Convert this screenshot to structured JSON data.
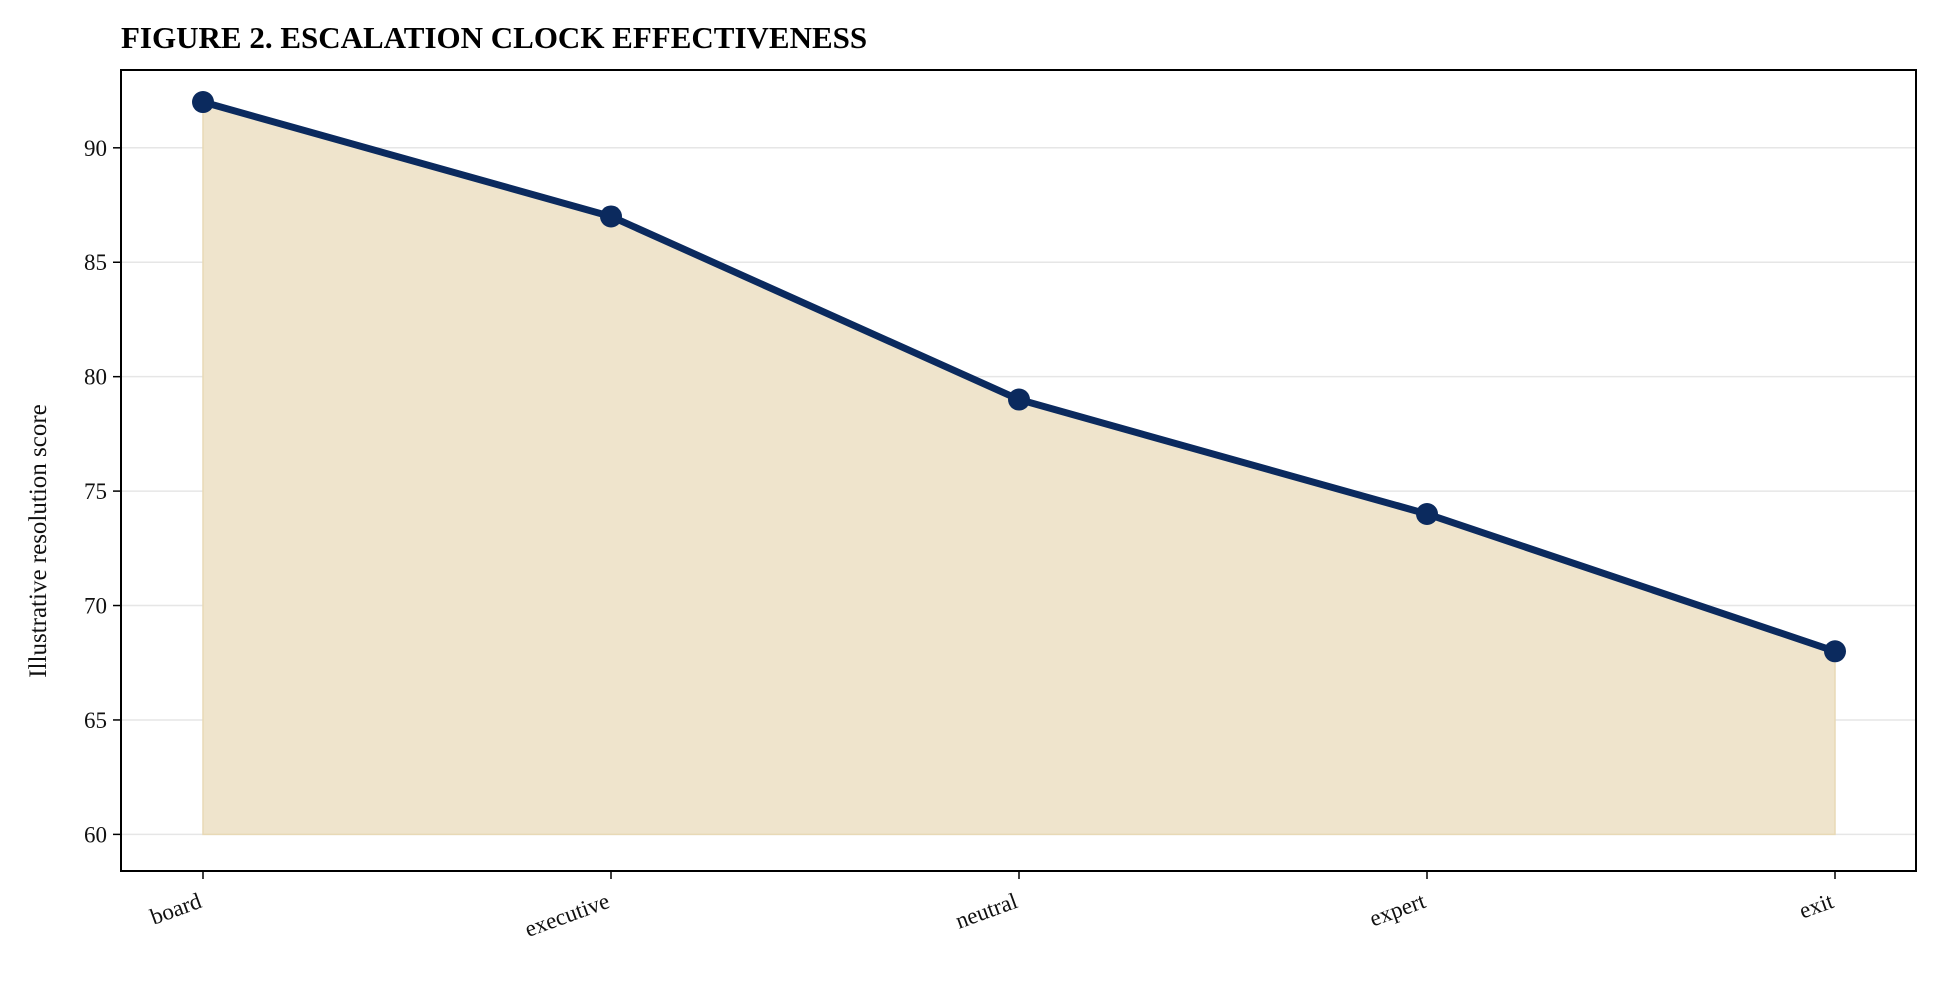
{
  "chart_data": {
    "type": "line",
    "title": "FIGURE 2. ESCALATION CLOCK EFFECTIVENESS",
    "xlabel": "",
    "ylabel": "Illustrative resolution score",
    "categories": [
      "board",
      "executive",
      "neutral",
      "expert",
      "exit"
    ],
    "values": [
      92,
      87,
      79,
      74,
      68
    ],
    "ylim": [
      58.4,
      93.4
    ],
    "yticks": [
      60,
      65,
      70,
      75,
      80,
      85,
      90
    ],
    "fill_baseline": 60,
    "grid": "horizontal",
    "colors": {
      "line": "#0b2a5e",
      "fill": "#efe4cc",
      "grid": "#e6e6e6"
    }
  }
}
